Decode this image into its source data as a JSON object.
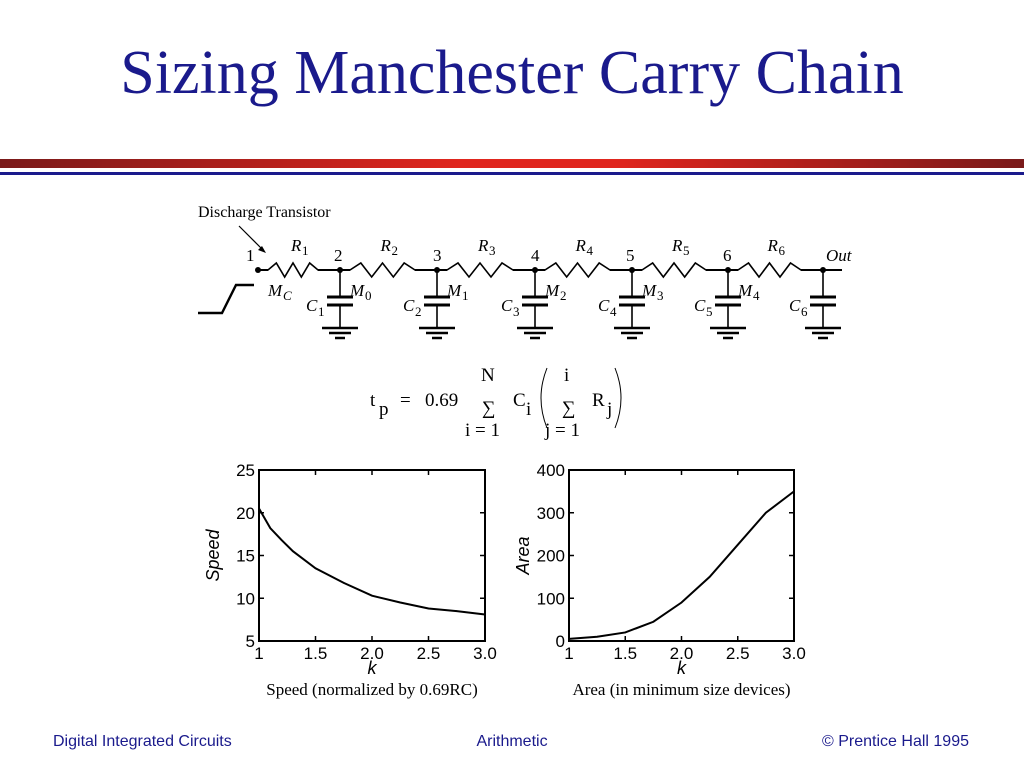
{
  "slide": {
    "title": "Sizing Manchester Carry Chain",
    "footer_left": "Digital Integrated Circuits",
    "footer_center": "Arithmetic",
    "footer_right": "© Prentice Hall 1995"
  },
  "circuit": {
    "discharge_label": "Discharge Transistor",
    "nodes": [
      "1",
      "2",
      "3",
      "4",
      "5",
      "6",
      "Out"
    ],
    "resistors": [
      {
        "name": "R",
        "sub": "1"
      },
      {
        "name": "R",
        "sub": "2"
      },
      {
        "name": "R",
        "sub": "3"
      },
      {
        "name": "R",
        "sub": "4"
      },
      {
        "name": "R",
        "sub": "5"
      },
      {
        "name": "R",
        "sub": "6"
      }
    ],
    "transistors": [
      {
        "name": "M",
        "sub": "C"
      },
      {
        "name": "M",
        "sub": "0"
      },
      {
        "name": "M",
        "sub": "1"
      },
      {
        "name": "M",
        "sub": "2"
      },
      {
        "name": "M",
        "sub": "3"
      },
      {
        "name": "M",
        "sub": "4"
      }
    ],
    "capacitors": [
      {
        "name": "C",
        "sub": "1"
      },
      {
        "name": "C",
        "sub": "2"
      },
      {
        "name": "C",
        "sub": "3"
      },
      {
        "name": "C",
        "sub": "4"
      },
      {
        "name": "C",
        "sub": "5"
      },
      {
        "name": "C",
        "sub": "6"
      }
    ]
  },
  "formula": {
    "lhs": "t",
    "lhs_sub": "p",
    "eq": "=",
    "coef": "0.69",
    "outer_upper": "N",
    "outer_sum": "∑",
    "outer_lower": "i = 1",
    "term": "C",
    "term_sub": "i",
    "inner_upper": "i",
    "inner_sum": "∑",
    "inner_lower": "j = 1",
    "inner_term": "R",
    "inner_sub": "j"
  },
  "chart_data": [
    {
      "type": "line",
      "x": [
        1.0,
        1.1,
        1.2,
        1.3,
        1.5,
        1.75,
        2.0,
        2.25,
        2.5,
        2.75,
        3.0
      ],
      "series": [
        {
          "values": [
            20.5,
            18.2,
            16.8,
            15.5,
            13.5,
            11.8,
            10.3,
            9.5,
            8.8,
            8.5,
            8.1
          ]
        }
      ],
      "xlabel": "k",
      "ylabel": "Speed",
      "caption": "Speed (normalized by 0.69RC)",
      "xlim": [
        1,
        3
      ],
      "ylim": [
        5,
        25
      ],
      "xticks": [
        "1",
        "1.5",
        "2.0",
        "2.5",
        "3.0"
      ],
      "yticks": [
        "5",
        "10",
        "15",
        "20",
        "25"
      ]
    },
    {
      "type": "line",
      "x": [
        1.0,
        1.25,
        1.5,
        1.75,
        2.0,
        2.25,
        2.5,
        2.75,
        3.0
      ],
      "series": [
        {
          "values": [
            5,
            10,
            20,
            45,
            90,
            150,
            225,
            300,
            350
          ]
        }
      ],
      "xlabel": "k",
      "ylabel": "Area",
      "caption": "Area (in minimum size devices)",
      "xlim": [
        1,
        3
      ],
      "ylim": [
        0,
        400
      ],
      "xticks": [
        "1",
        "1.5",
        "2.0",
        "2.5",
        "3.0"
      ],
      "yticks": [
        "0",
        "100",
        "200",
        "300",
        "400"
      ]
    }
  ]
}
